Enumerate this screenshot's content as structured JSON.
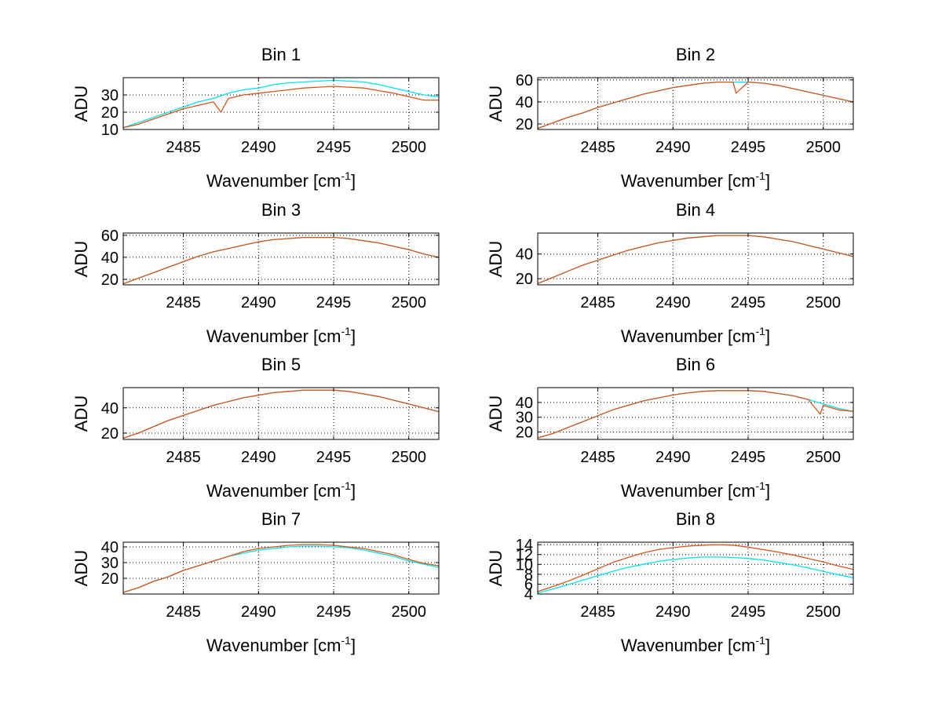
{
  "chart_data": [
    {
      "type": "line",
      "title": "Bin 1",
      "xlabel": "Wavenumber [cm",
      "xlabel_sup": "-1",
      "xlabel_end": "]",
      "ylabel": "ADU",
      "xlim": [
        2481,
        2502
      ],
      "ylim": [
        10,
        40
      ],
      "xticks": [
        2485,
        2490,
        2495,
        2500
      ],
      "yticks": [
        10,
        20,
        30
      ],
      "grid": true,
      "series": [
        {
          "color": "#00e5ee",
          "x": [
            2481,
            2482,
            2483,
            2484,
            2485,
            2486,
            2487,
            2488,
            2489,
            2490,
            2491,
            2492,
            2493,
            2494,
            2495,
            2496,
            2497,
            2498,
            2499,
            2500,
            2501,
            2502
          ],
          "y": [
            11,
            14,
            17,
            20,
            23,
            26,
            28,
            31,
            33,
            34,
            36,
            37,
            37.5,
            38,
            38.5,
            38,
            37.5,
            36,
            34,
            32,
            30,
            29
          ]
        },
        {
          "color": "#d9541a",
          "x": [
            2481,
            2482,
            2483,
            2484,
            2485,
            2486,
            2487,
            2487.5,
            2488,
            2489,
            2490,
            2491,
            2492,
            2493,
            2494,
            2495,
            2496,
            2497,
            2498,
            2499,
            2500,
            2501,
            2502
          ],
          "y": [
            11,
            13,
            16,
            19,
            22,
            24,
            26,
            20,
            28,
            30,
            31,
            32,
            33,
            34,
            34.5,
            35,
            34.5,
            34,
            32.5,
            31,
            29,
            27,
            27
          ]
        }
      ]
    },
    {
      "type": "line",
      "title": "Bin 2",
      "xlabel": "Wavenumber [cm",
      "xlabel_sup": "-1",
      "xlabel_end": "]",
      "ylabel": "ADU",
      "xlim": [
        2481,
        2502
      ],
      "ylim": [
        15,
        62
      ],
      "xticks": [
        2485,
        2490,
        2495,
        2500
      ],
      "yticks": [
        20,
        40,
        60
      ],
      "grid": true,
      "series": [
        {
          "color": "#00e5ee",
          "x": [
            2481,
            2482,
            2483,
            2484,
            2485,
            2486,
            2487,
            2488,
            2489,
            2490,
            2491,
            2492,
            2493,
            2494,
            2495,
            2496,
            2497,
            2498,
            2499,
            2500,
            2501,
            2502
          ],
          "y": [
            16,
            21,
            26,
            30,
            35,
            39,
            43,
            47,
            50,
            53,
            55,
            57,
            58,
            58,
            58,
            57,
            55,
            52,
            49,
            46,
            43,
            40
          ]
        },
        {
          "color": "#d9541a",
          "x": [
            2481,
            2482,
            2483,
            2484,
            2485,
            2486,
            2487,
            2488,
            2489,
            2490,
            2491,
            2492,
            2493,
            2494,
            2494.2,
            2495,
            2496,
            2497,
            2498,
            2499,
            2500,
            2501,
            2502
          ],
          "y": [
            16,
            21,
            26,
            30,
            35,
            39,
            43,
            47,
            50,
            53,
            55,
            57,
            58,
            58,
            48,
            58,
            57,
            55,
            52,
            49,
            46,
            43,
            40
          ]
        }
      ]
    },
    {
      "type": "line",
      "title": "Bin 3",
      "xlabel": "Wavenumber [cm",
      "xlabel_sup": "-1",
      "xlabel_end": "]",
      "ylabel": "ADU",
      "xlim": [
        2481,
        2502
      ],
      "ylim": [
        15,
        62
      ],
      "xticks": [
        2485,
        2490,
        2495,
        2500
      ],
      "yticks": [
        20,
        40,
        60
      ],
      "grid": true,
      "series": [
        {
          "color": "#00e5ee",
          "x": [
            2481,
            2482,
            2483,
            2484,
            2485,
            2486,
            2487,
            2488,
            2489,
            2490,
            2491,
            2492,
            2493,
            2494,
            2495,
            2496,
            2497,
            2498,
            2499,
            2500,
            2501,
            2502
          ],
          "y": [
            16,
            21,
            26,
            31,
            36,
            41,
            45,
            48,
            51,
            54,
            56,
            57,
            58,
            58,
            58,
            57,
            55,
            53,
            50,
            47,
            43,
            40
          ]
        },
        {
          "color": "#d9541a",
          "x": [
            2481,
            2482,
            2483,
            2484,
            2485,
            2486,
            2487,
            2488,
            2489,
            2490,
            2491,
            2492,
            2493,
            2494,
            2495,
            2496,
            2497,
            2498,
            2499,
            2500,
            2501,
            2502
          ],
          "y": [
            16,
            21,
            26,
            31,
            36,
            41,
            45,
            48,
            51,
            54,
            56,
            57,
            58,
            58,
            58,
            57,
            55,
            53,
            50,
            47,
            43,
            40
          ]
        }
      ]
    },
    {
      "type": "line",
      "title": "Bin 4",
      "xlabel": "Wavenumber [cm",
      "xlabel_sup": "-1",
      "xlabel_end": "]",
      "ylabel": "ADU",
      "xlim": [
        2481,
        2502
      ],
      "ylim": [
        15,
        57
      ],
      "xticks": [
        2485,
        2490,
        2495,
        2500
      ],
      "yticks": [
        20,
        40
      ],
      "grid": true,
      "series": [
        {
          "color": "#00e5ee",
          "x": [
            2481,
            2482,
            2483,
            2484,
            2485,
            2486,
            2487,
            2488,
            2489,
            2490,
            2491,
            2492,
            2493,
            2494,
            2495,
            2496,
            2497,
            2498,
            2499,
            2500,
            2501,
            2502
          ],
          "y": [
            16,
            21,
            26,
            31,
            35,
            39,
            43,
            46,
            49,
            51,
            53,
            54,
            55,
            55,
            55,
            54,
            52,
            50,
            47,
            44,
            41,
            38
          ]
        },
        {
          "color": "#d9541a",
          "x": [
            2481,
            2482,
            2483,
            2484,
            2485,
            2486,
            2487,
            2488,
            2489,
            2490,
            2491,
            2492,
            2493,
            2494,
            2495,
            2496,
            2497,
            2498,
            2499,
            2500,
            2501,
            2502
          ],
          "y": [
            16,
            21,
            26,
            31,
            35,
            39,
            43,
            46,
            49,
            51,
            53,
            54,
            55,
            55,
            55,
            54,
            52,
            50,
            47,
            44,
            41,
            38
          ]
        }
      ]
    },
    {
      "type": "line",
      "title": "Bin 5",
      "xlabel": "Wavenumber [cm",
      "xlabel_sup": "-1",
      "xlabel_end": "]",
      "ylabel": "ADU",
      "xlim": [
        2481,
        2502
      ],
      "ylim": [
        15,
        56
      ],
      "xticks": [
        2485,
        2490,
        2495,
        2500
      ],
      "yticks": [
        20,
        40
      ],
      "grid": true,
      "series": [
        {
          "color": "#00e5ee",
          "x": [
            2481,
            2482,
            2483,
            2484,
            2485,
            2486,
            2487,
            2488,
            2489,
            2490,
            2491,
            2492,
            2493,
            2494,
            2495,
            2496,
            2497,
            2498,
            2499,
            2500,
            2501,
            2502
          ],
          "y": [
            16,
            20,
            25,
            30,
            34,
            38,
            42,
            45,
            48,
            50,
            52,
            53,
            54,
            54,
            54,
            53,
            51,
            49,
            46,
            43,
            40,
            37
          ]
        },
        {
          "color": "#d9541a",
          "x": [
            2481,
            2482,
            2483,
            2484,
            2485,
            2486,
            2487,
            2488,
            2489,
            2490,
            2491,
            2492,
            2493,
            2494,
            2495,
            2496,
            2497,
            2498,
            2499,
            2500,
            2501,
            2502
          ],
          "y": [
            16,
            20,
            25,
            30,
            34,
            38,
            42,
            45,
            48,
            50,
            52,
            53,
            54,
            54,
            54,
            53,
            51,
            49,
            46,
            43,
            40,
            37
          ]
        }
      ]
    },
    {
      "type": "line",
      "title": "Bin 6",
      "xlabel": "Wavenumber [cm",
      "xlabel_sup": "-1",
      "xlabel_end": "]",
      "ylabel": "ADU",
      "xlim": [
        2481,
        2502
      ],
      "ylim": [
        15,
        50
      ],
      "xticks": [
        2485,
        2490,
        2495,
        2500
      ],
      "yticks": [
        20,
        30,
        40
      ],
      "grid": true,
      "series": [
        {
          "color": "#00e5ee",
          "x": [
            2481,
            2482,
            2483,
            2484,
            2485,
            2486,
            2487,
            2488,
            2489,
            2490,
            2491,
            2492,
            2493,
            2494,
            2495,
            2496,
            2497,
            2498,
            2499,
            2500,
            2501,
            2502
          ],
          "y": [
            16,
            19,
            23,
            27,
            31,
            35,
            38,
            41,
            43,
            45,
            46.5,
            47.5,
            48,
            48,
            48,
            47.5,
            46,
            44.5,
            42,
            39,
            36,
            34
          ]
        },
        {
          "color": "#d9541a",
          "x": [
            2481,
            2482,
            2483,
            2484,
            2485,
            2486,
            2487,
            2488,
            2489,
            2490,
            2491,
            2492,
            2493,
            2494,
            2495,
            2496,
            2497,
            2498,
            2499,
            2499.8,
            2500,
            2501,
            2502
          ],
          "y": [
            16,
            19,
            23,
            27,
            31,
            35,
            38,
            41,
            43,
            45,
            46.5,
            47.5,
            48,
            48,
            48,
            47.5,
            46,
            44.5,
            42,
            32,
            38,
            35,
            34
          ]
        }
      ]
    },
    {
      "type": "line",
      "title": "Bin 7",
      "xlabel": "Wavenumber [cm",
      "xlabel_sup": "-1",
      "xlabel_end": "]",
      "ylabel": "ADU",
      "xlim": [
        2481,
        2502
      ],
      "ylim": [
        10,
        43
      ],
      "xticks": [
        2485,
        2490,
        2495,
        2500
      ],
      "yticks": [
        20,
        30,
        40
      ],
      "grid": true,
      "series": [
        {
          "color": "#00e5ee",
          "x": [
            2481,
            2482,
            2483,
            2484,
            2485,
            2486,
            2487,
            2488,
            2489,
            2490,
            2491,
            2492,
            2493,
            2494,
            2495,
            2496,
            2497,
            2498,
            2499,
            2500,
            2501,
            2502
          ],
          "y": [
            11,
            14,
            18,
            21,
            25,
            28,
            31,
            34,
            36,
            38,
            39,
            40,
            40.5,
            40.5,
            40,
            39.5,
            38,
            36,
            34,
            31,
            29,
            27
          ]
        },
        {
          "color": "#d9541a",
          "x": [
            2481,
            2482,
            2483,
            2484,
            2485,
            2486,
            2487,
            2488,
            2489,
            2490,
            2491,
            2492,
            2493,
            2494,
            2495,
            2496,
            2497,
            2498,
            2499,
            2500,
            2501,
            2502
          ],
          "y": [
            11,
            14,
            18,
            21,
            25,
            28,
            31,
            34,
            37,
            39,
            40,
            41,
            41.5,
            41.5,
            41,
            40,
            39,
            37,
            35,
            32,
            29.5,
            28
          ]
        }
      ]
    },
    {
      "type": "line",
      "title": "Bin 8",
      "xlabel": "Wavenumber [cm",
      "xlabel_sup": "-1",
      "xlabel_end": "]",
      "ylabel": "ADU",
      "xlim": [
        2481,
        2502
      ],
      "ylim": [
        4,
        14.5
      ],
      "xticks": [
        2485,
        2490,
        2495,
        2500
      ],
      "yticks": [
        4,
        6,
        8,
        10,
        12,
        14
      ],
      "grid": true,
      "series": [
        {
          "color": "#00e5ee",
          "x": [
            2481,
            2482,
            2483,
            2484,
            2485,
            2486,
            2487,
            2488,
            2489,
            2490,
            2491,
            2492,
            2493,
            2494,
            2495,
            2496,
            2497,
            2498,
            2499,
            2500,
            2501,
            2502
          ],
          "y": [
            4.2,
            5,
            5.9,
            6.8,
            7.7,
            8.6,
            9.4,
            10,
            10.6,
            11,
            11.3,
            11.5,
            11.5,
            11.4,
            11.2,
            10.9,
            10.4,
            9.9,
            9.3,
            8.6,
            7.9,
            7.3
          ]
        },
        {
          "color": "#d9541a",
          "x": [
            2481,
            2482,
            2483,
            2484,
            2485,
            2486,
            2487,
            2488,
            2489,
            2490,
            2491,
            2492,
            2493,
            2494,
            2495,
            2496,
            2497,
            2498,
            2499,
            2500,
            2501,
            2502
          ],
          "y": [
            4.5,
            5.5,
            6.6,
            7.8,
            9.1,
            10.4,
            11.4,
            12.3,
            13,
            13.4,
            13.7,
            13.9,
            14,
            13.9,
            13.5,
            13,
            12.5,
            11.9,
            11.2,
            10.5,
            9.7,
            9
          ]
        }
      ]
    }
  ]
}
